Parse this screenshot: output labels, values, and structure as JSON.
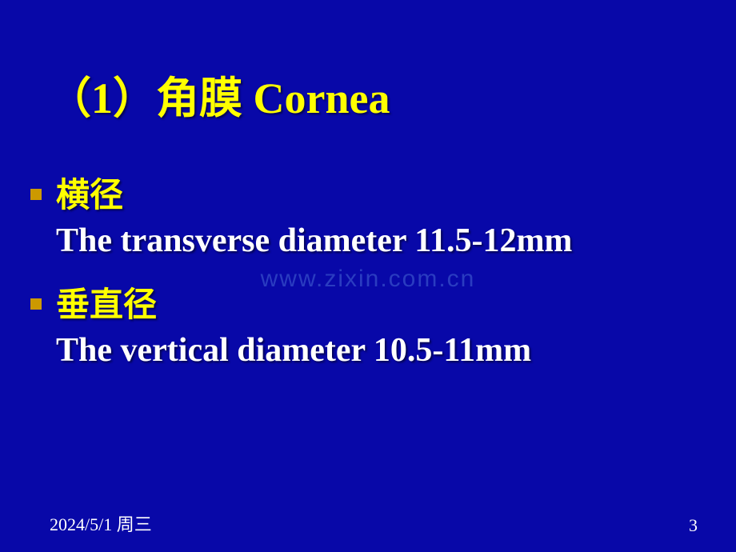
{
  "colors": {
    "background": "#0808a8",
    "title": "#ffff00",
    "bullet_marker": "#cc9900",
    "bullet_label": "#ffff00",
    "body_text": "#ffffff",
    "watermark": "#2a3cc0",
    "footer": "#ffffff"
  },
  "title": "（1）角膜  Cornea",
  "items": [
    {
      "label": "横径",
      "detail": "The transverse diameter 11.5-12mm"
    },
    {
      "label": "垂直径",
      "detail": "The vertical diameter 10.5-11mm"
    }
  ],
  "watermark": "www.zixin.com.cn",
  "footer": {
    "date": "2024/5/1 周三",
    "page": "3"
  },
  "typography": {
    "title_fontsize": 54,
    "body_fontsize": 42,
    "footer_fontsize": 22,
    "watermark_fontsize": 30
  }
}
